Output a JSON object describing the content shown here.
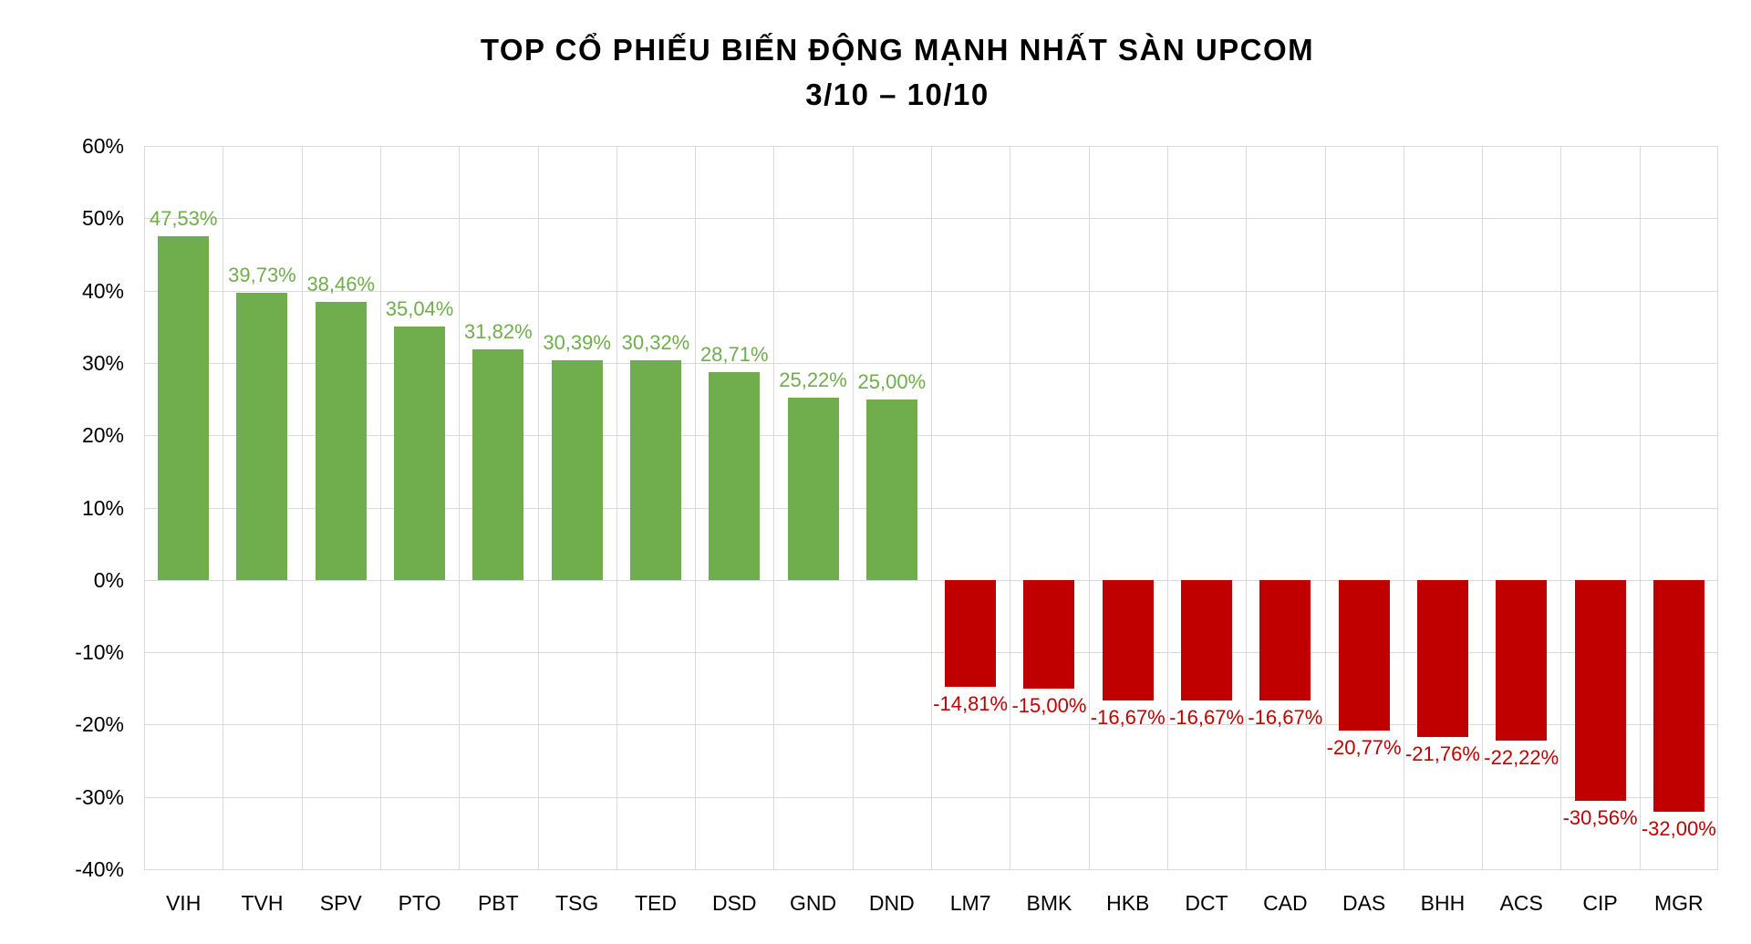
{
  "title": "TOP CỔ PHIẾU BIẾN ĐỘNG MẠNH NHẤT SÀN UPCOM",
  "subtitle": "3/10 – 10/10",
  "colors": {
    "positive": "#6fad4d",
    "negative": "#c00000",
    "gridline": "#d9d9d9",
    "axis_text": "#000000",
    "title_text": "#000000"
  },
  "chart_data": {
    "type": "bar",
    "title": "TOP CỔ PHIẾU BIẾN ĐỘNG MẠNH NHẤT SÀN UPCOM",
    "subtitle": "3/10 – 10/10",
    "categories": [
      "VIH",
      "TVH",
      "SPV",
      "PTO",
      "PBT",
      "TSG",
      "TED",
      "DSD",
      "GND",
      "DND",
      "LM7",
      "BMK",
      "HKB",
      "DCT",
      "CAD",
      "DAS",
      "BHH",
      "ACS",
      "CIP",
      "MGR"
    ],
    "values": [
      47.53,
      39.73,
      38.46,
      35.04,
      31.82,
      30.39,
      30.32,
      28.71,
      25.22,
      25.0,
      -14.81,
      -15.0,
      -16.67,
      -16.67,
      -16.67,
      -20.77,
      -21.76,
      -22.22,
      -30.56,
      -32.0
    ],
    "value_labels": [
      "47,53%",
      "39,73%",
      "38,46%",
      "35,04%",
      "31,82%",
      "30,39%",
      "30,32%",
      "28,71%",
      "25,22%",
      "25,00%",
      "-14,81%",
      "-15,00%",
      "-16,67%",
      "-16,67%",
      "-16,67%",
      "-20,77%",
      "-21,76%",
      "-22,22%",
      "-30,56%",
      "-32,00%"
    ],
    "y_tick_values": [
      60,
      50,
      40,
      30,
      20,
      10,
      0,
      -10,
      -20,
      -30,
      -40
    ],
    "y_tick_labels": [
      "60%",
      "50%",
      "40%",
      "30%",
      "20%",
      "10%",
      "0%",
      "-10%",
      "-20%",
      "-30%",
      "-40%"
    ],
    "ylim": [
      -40,
      60
    ],
    "grid": true,
    "legend": "none",
    "xlabel": "",
    "ylabel": ""
  }
}
